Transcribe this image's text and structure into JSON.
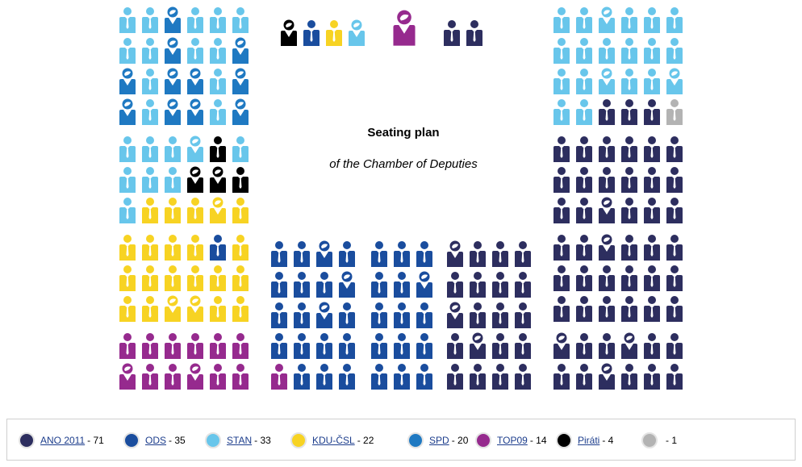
{
  "title": "Seating plan",
  "subtitle": "of the Chamber of Deputies",
  "colors": {
    "ANO": "#2d2e5f",
    "ODS": "#1a4d9e",
    "STAN": "#68c6eb",
    "KDU": "#f7d323",
    "SPD": "#1f79c2",
    "TOP09": "#962a8e",
    "PIR": "#000000",
    "IND": "#b3b3b3"
  },
  "legend": [
    {
      "key": "ANO",
      "name": "ANO 2011",
      "count": "- 71"
    },
    {
      "key": "ODS",
      "name": "ODS",
      "count": "- 35"
    },
    {
      "key": "STAN",
      "name": "STAN",
      "count": "- 33"
    },
    {
      "key": "KDU",
      "name": "KDU-ČSL",
      "count": "- 22"
    },
    {
      "key": "SPD",
      "name": "SPD",
      "count": "- 20"
    },
    {
      "key": "TOP09",
      "name": "TOP09",
      "count": "- 14"
    },
    {
      "key": "PIR",
      "name": "Piráti",
      "count": "- 4"
    },
    {
      "key": "IND",
      "name": "",
      "count": "- 1"
    }
  ],
  "presidium": "PODSWL",
  "left_block": [
    "SSWSSS",
    "SSWSSW",
    "WSWWSW",
    "WSWWSW",
    "SSSSPS",
    "SSSPPP",
    "SKKKKK",
    "KKKKOK",
    "KKKKKK",
    "KKKKKK",
    "TTTTTT",
    "TTTTTT"
  ],
  "left_block_female": [
    "..#...",
    "..#..#",
    "#.##.#",
    "#.##.#",
    "...#..",
    "...##.",
    "....#.",
    "......",
    "......",
    "..##..",
    "......",
    "#..#.."
  ],
  "center_ods_1": [
    "OOOO",
    "OOOO",
    "OOOO",
    "OOOO",
    "TOOO"
  ],
  "center_ods_1_female": [
    "..#.",
    "...#",
    "..#.",
    "....",
    "...."
  ],
  "center_ods_2": [
    "OOO",
    "OOO",
    "OOO",
    "OOO",
    "OOO"
  ],
  "center_ods_2_female": [
    "...",
    "..#",
    "...",
    "...",
    "..."
  ],
  "center_ano": [
    "AAAA",
    "AAAA",
    "AAAA",
    "AAAA",
    "AAAA"
  ],
  "center_ano_female": [
    "#...",
    "....",
    "#...",
    ".#..",
    "...."
  ],
  "right_block": [
    "SSSSSS",
    "SSSSSS",
    "SSSSSS",
    "SSAAAI",
    "AAAAAA",
    "AAAAAA",
    "AAAAAA",
    "AAAAAA",
    "AAAAAA",
    "AAAAAA",
    "AAAAAA",
    "AAAAAA"
  ],
  "right_block_female": [
    "..#...",
    "......",
    "..#..#",
    "......",
    "......",
    "......",
    "..#...",
    "..#...",
    "......",
    "......",
    "#..#..",
    "..#..."
  ]
}
